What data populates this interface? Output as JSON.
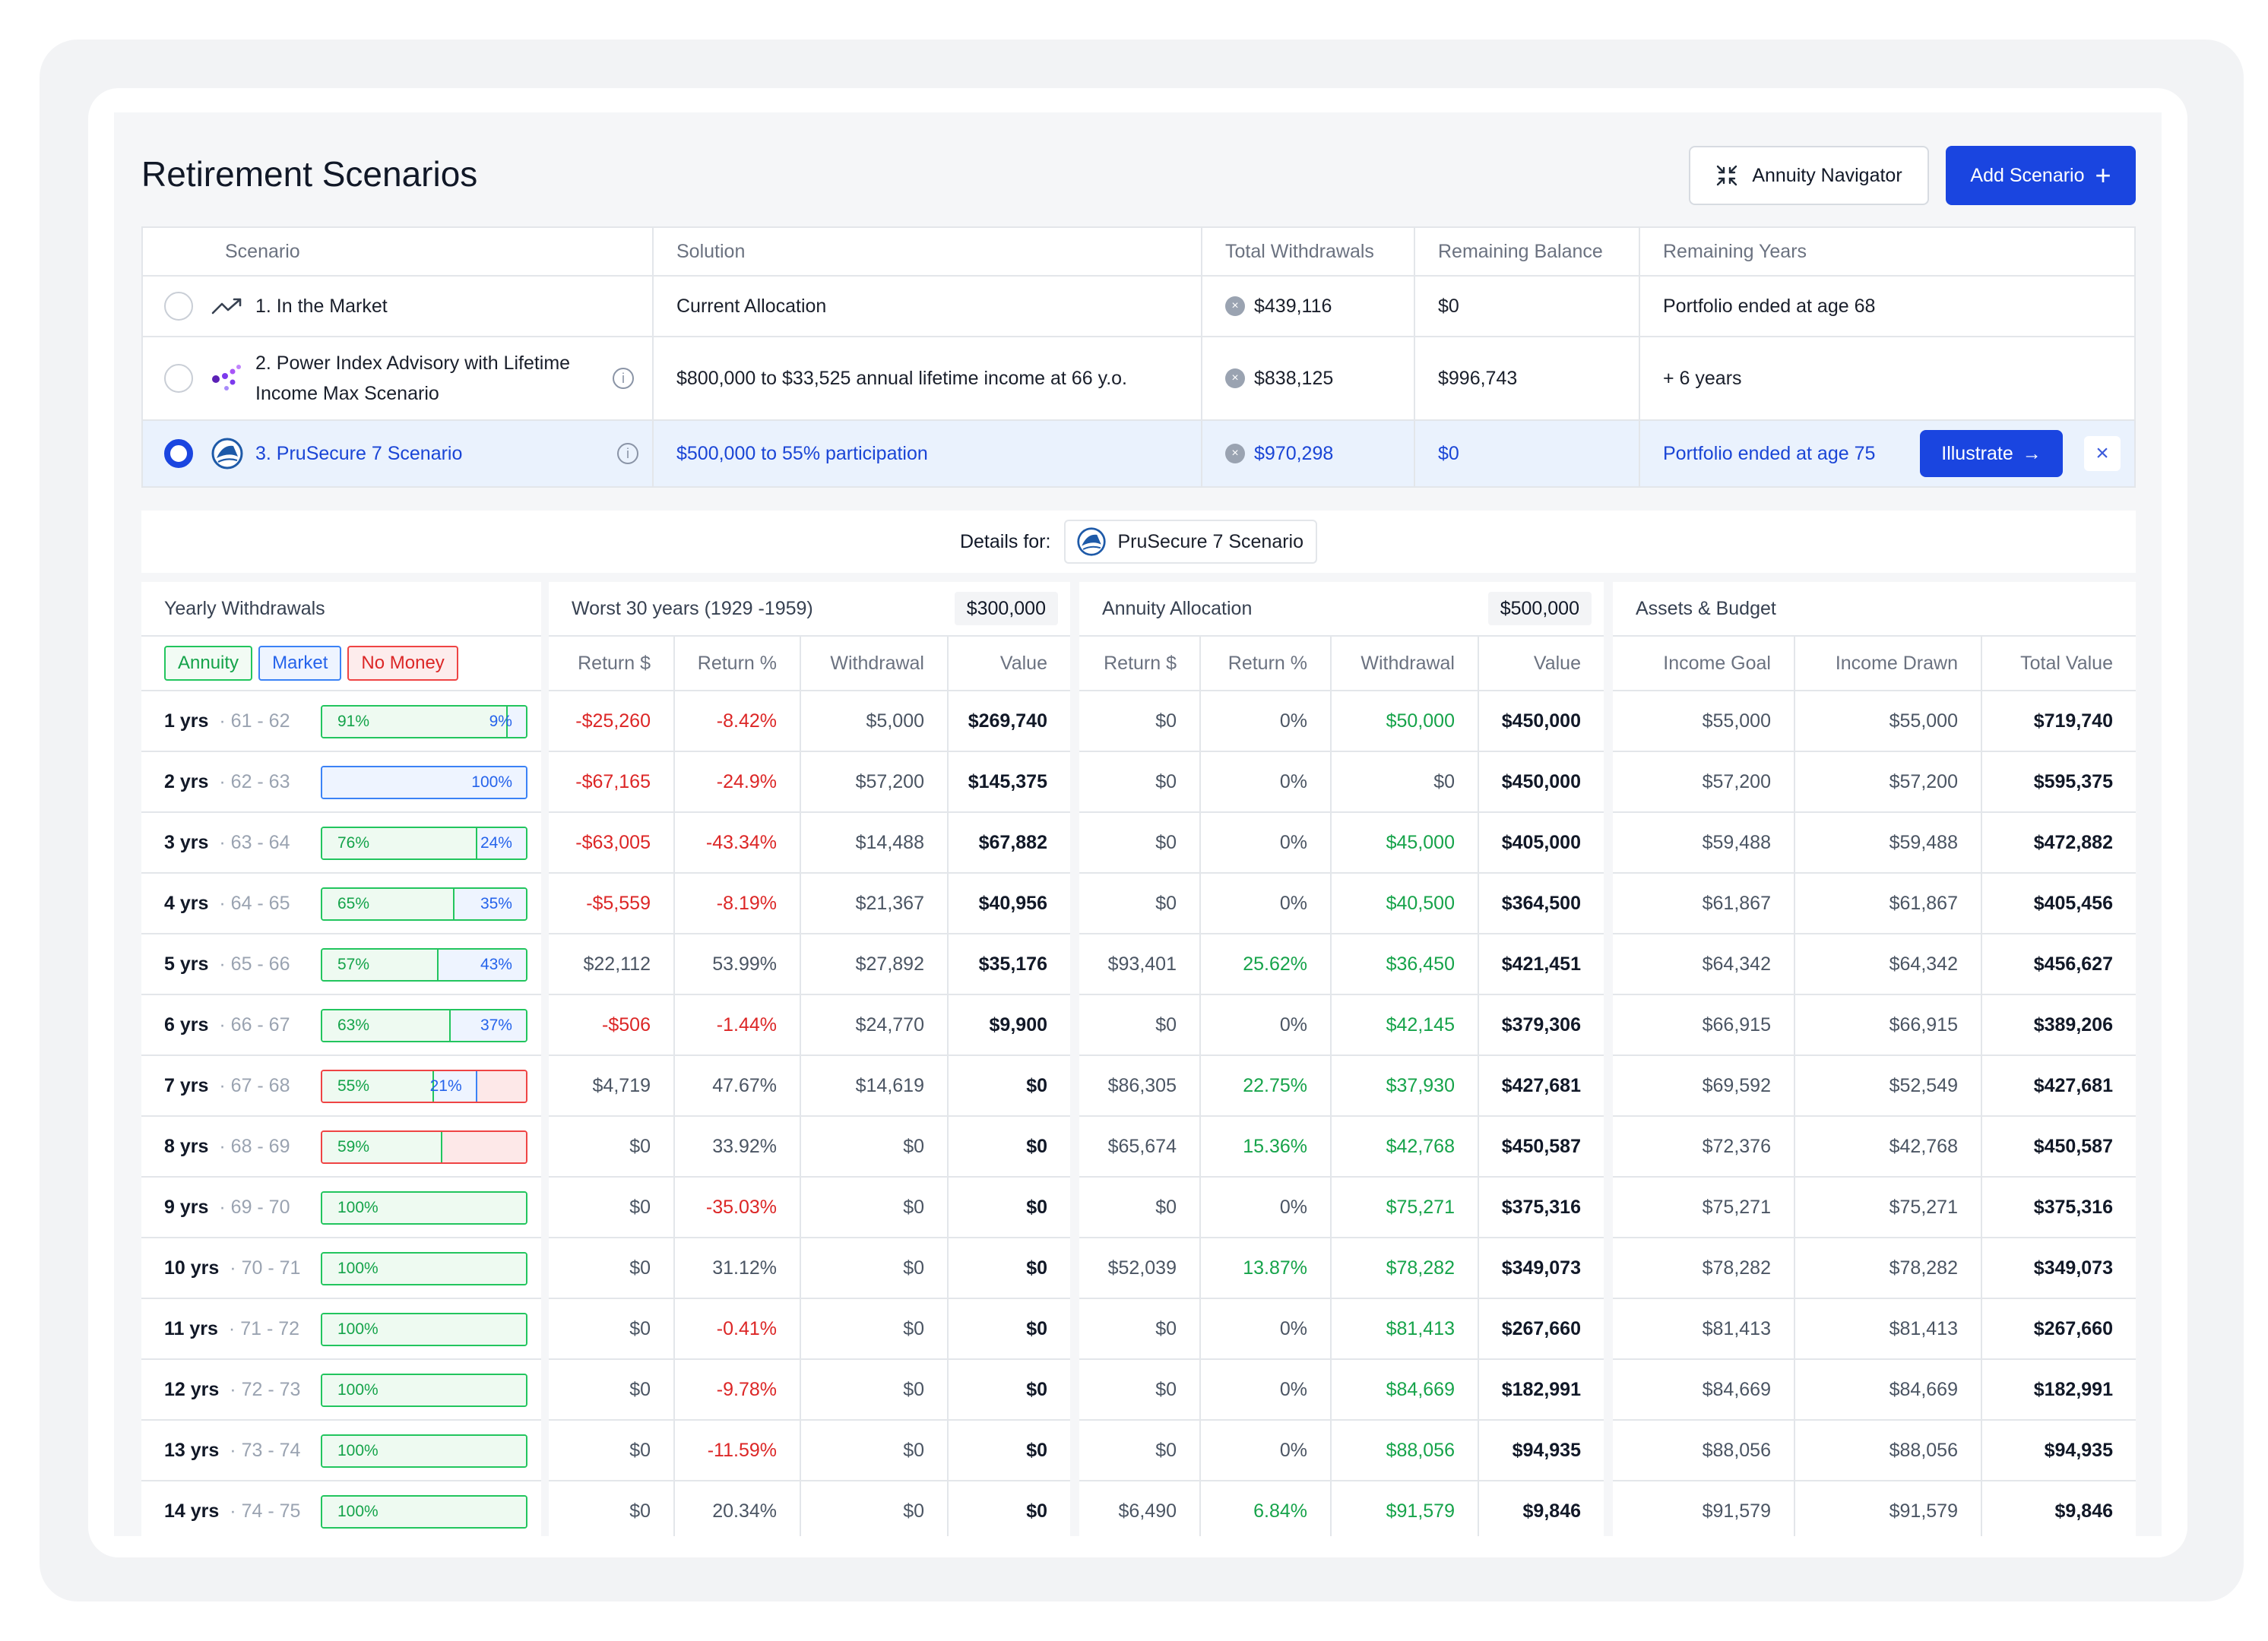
{
  "page": {
    "title": "Retirement Scenarios",
    "navigator_label": "Annuity Navigator",
    "add_label": "Add Scenario",
    "add_icon": "+"
  },
  "scenarios": {
    "columns": [
      "Scenario",
      "Solution",
      "Total Withdrawals",
      "Remaining Balance",
      "Remaining Years"
    ],
    "rows": [
      {
        "name": "1. In the Market",
        "solution": "Current Allocation",
        "withdrawals": "$439,116",
        "balance": "$0",
        "years": "Portfolio ended at age 68",
        "icon": "trend-up-icon",
        "selected": false
      },
      {
        "name": "2. Power Index Advisory with Lifetime Income Max Scenario",
        "solution": "$800,000 to $33,525 annual lifetime income at 66 y.o.",
        "withdrawals": "$838,125",
        "balance": "$996,743",
        "years": "+ 6 years",
        "icon": "dots-logo-icon",
        "selected": false
      },
      {
        "name": "3. PruSecure 7 Scenario",
        "solution": "$500,000 to 55% participation",
        "withdrawals": "$970,298",
        "balance": "$0",
        "years": "Portfolio ended at age 75",
        "icon": "prudential-logo-icon",
        "selected": true
      }
    ],
    "illustrate_label": "Illustrate",
    "illustrate_arrow": "→",
    "close_glyph": "×",
    "info_glyph": "i",
    "badge_glyph": "×"
  },
  "details": {
    "label": "Details for:",
    "scenario": "PruSecure 7 Scenario"
  },
  "yearly_withdrawals": {
    "title": "Yearly Withdrawals",
    "legend": [
      "Annuity",
      "Market",
      "No Money"
    ],
    "rows": [
      {
        "yrs": "1 yrs",
        "age": "· 61 - 62",
        "annuity": 91,
        "market": 9,
        "none": 0,
        "a_label": "91%",
        "m_label": "9%"
      },
      {
        "yrs": "2 yrs",
        "age": "· 62 - 63",
        "annuity": 0,
        "market": 100,
        "none": 0,
        "a_label": "",
        "m_label": "100%"
      },
      {
        "yrs": "3 yrs",
        "age": "· 63 - 64",
        "annuity": 76,
        "market": 24,
        "none": 0,
        "a_label": "76%",
        "m_label": "24%"
      },
      {
        "yrs": "4 yrs",
        "age": "· 64 - 65",
        "annuity": 65,
        "market": 35,
        "none": 0,
        "a_label": "65%",
        "m_label": "35%"
      },
      {
        "yrs": "5 yrs",
        "age": "· 65 - 66",
        "annuity": 57,
        "market": 43,
        "none": 0,
        "a_label": "57%",
        "m_label": "43%"
      },
      {
        "yrs": "6 yrs",
        "age": "· 66 - 67",
        "annuity": 63,
        "market": 37,
        "none": 0,
        "a_label": "63%",
        "m_label": "37%"
      },
      {
        "yrs": "7 yrs",
        "age": "· 67 - 68",
        "annuity": 55,
        "market": 21,
        "none": 24,
        "a_label": "55%",
        "m_label": "21%"
      },
      {
        "yrs": "8 yrs",
        "age": "· 68 - 69",
        "annuity": 59,
        "market": 0,
        "none": 41,
        "a_label": "59%",
        "m_label": ""
      },
      {
        "yrs": "9 yrs",
        "age": "· 69 - 70",
        "annuity": 100,
        "market": 0,
        "none": 0,
        "a_label": "100%",
        "m_label": ""
      },
      {
        "yrs": "10 yrs",
        "age": "· 70 - 71",
        "annuity": 100,
        "market": 0,
        "none": 0,
        "a_label": "100%",
        "m_label": ""
      },
      {
        "yrs": "11 yrs",
        "age": "· 71 - 72",
        "annuity": 100,
        "market": 0,
        "none": 0,
        "a_label": "100%",
        "m_label": ""
      },
      {
        "yrs": "12 yrs",
        "age": "· 72 - 73",
        "annuity": 100,
        "market": 0,
        "none": 0,
        "a_label": "100%",
        "m_label": ""
      },
      {
        "yrs": "13 yrs",
        "age": "· 73 - 74",
        "annuity": 100,
        "market": 0,
        "none": 0,
        "a_label": "100%",
        "m_label": ""
      },
      {
        "yrs": "14 yrs",
        "age": "· 74 - 75",
        "annuity": 100,
        "market": 0,
        "none": 0,
        "a_label": "100%",
        "m_label": ""
      }
    ]
  },
  "worst30": {
    "title": "Worst 30 years (1929 -1959)",
    "amount": "$300,000",
    "columns": [
      "Return $",
      "Return %",
      "Withdrawal",
      "Value"
    ],
    "rows": [
      [
        "-$25,260",
        "-8.42%",
        "$5,000",
        "$269,740"
      ],
      [
        "-$67,165",
        "-24.9%",
        "$57,200",
        "$145,375"
      ],
      [
        "-$63,005",
        "-43.34%",
        "$14,488",
        "$67,882"
      ],
      [
        "-$5,559",
        "-8.19%",
        "$21,367",
        "$40,956"
      ],
      [
        "$22,112",
        "53.99%",
        "$27,892",
        "$35,176"
      ],
      [
        "-$506",
        "-1.44%",
        "$24,770",
        "$9,900"
      ],
      [
        "$4,719",
        "47.67%",
        "$14,619",
        "$0"
      ],
      [
        "$0",
        "33.92%",
        "$0",
        "$0"
      ],
      [
        "$0",
        "-35.03%",
        "$0",
        "$0"
      ],
      [
        "$0",
        "31.12%",
        "$0",
        "$0"
      ],
      [
        "$0",
        "-0.41%",
        "$0",
        "$0"
      ],
      [
        "$0",
        "-9.78%",
        "$0",
        "$0"
      ],
      [
        "$0",
        "-11.59%",
        "$0",
        "$0"
      ],
      [
        "$0",
        "20.34%",
        "$0",
        "$0"
      ]
    ]
  },
  "annuity": {
    "title": "Annuity Allocation",
    "amount": "$500,000",
    "columns": [
      "Return $",
      "Return %",
      "Withdrawal",
      "Value"
    ],
    "rows": [
      [
        "$0",
        "0%",
        "$50,000",
        "$450,000"
      ],
      [
        "$0",
        "0%",
        "$0",
        "$450,000"
      ],
      [
        "$0",
        "0%",
        "$45,000",
        "$405,000"
      ],
      [
        "$0",
        "0%",
        "$40,500",
        "$364,500"
      ],
      [
        "$93,401",
        "25.62%",
        "$36,450",
        "$421,451"
      ],
      [
        "$0",
        "0%",
        "$42,145",
        "$379,306"
      ],
      [
        "$86,305",
        "22.75%",
        "$37,930",
        "$427,681"
      ],
      [
        "$65,674",
        "15.36%",
        "$42,768",
        "$450,587"
      ],
      [
        "$0",
        "0%",
        "$75,271",
        "$375,316"
      ],
      [
        "$52,039",
        "13.87%",
        "$78,282",
        "$349,073"
      ],
      [
        "$0",
        "0%",
        "$81,413",
        "$267,660"
      ],
      [
        "$0",
        "0%",
        "$84,669",
        "$182,991"
      ],
      [
        "$0",
        "0%",
        "$88,056",
        "$94,935"
      ],
      [
        "$6,490",
        "6.84%",
        "$91,579",
        "$9,846"
      ]
    ]
  },
  "assets": {
    "title": "Assets & Budget",
    "columns": [
      "Income Goal",
      "Income Drawn",
      "Total Value"
    ],
    "rows": [
      [
        "$55,000",
        "$55,000",
        "$719,740"
      ],
      [
        "$57,200",
        "$57,200",
        "$595,375"
      ],
      [
        "$59,488",
        "$59,488",
        "$472,882"
      ],
      [
        "$61,867",
        "$61,867",
        "$405,456"
      ],
      [
        "$64,342",
        "$64,342",
        "$456,627"
      ],
      [
        "$66,915",
        "$66,915",
        "$389,206"
      ],
      [
        "$69,592",
        "$52,549",
        "$427,681"
      ],
      [
        "$72,376",
        "$42,768",
        "$450,587"
      ],
      [
        "$75,271",
        "$75,271",
        "$375,316"
      ],
      [
        "$78,282",
        "$78,282",
        "$349,073"
      ],
      [
        "$81,413",
        "$81,413",
        "$267,660"
      ],
      [
        "$84,669",
        "$84,669",
        "$182,991"
      ],
      [
        "$88,056",
        "$88,056",
        "$94,935"
      ],
      [
        "$91,579",
        "$91,579",
        "$9,846"
      ]
    ]
  },
  "colors": {
    "accent": "#1a45e0",
    "positive": "#16a34a",
    "negative": "#dc2626",
    "market": "#3b82f6"
  }
}
